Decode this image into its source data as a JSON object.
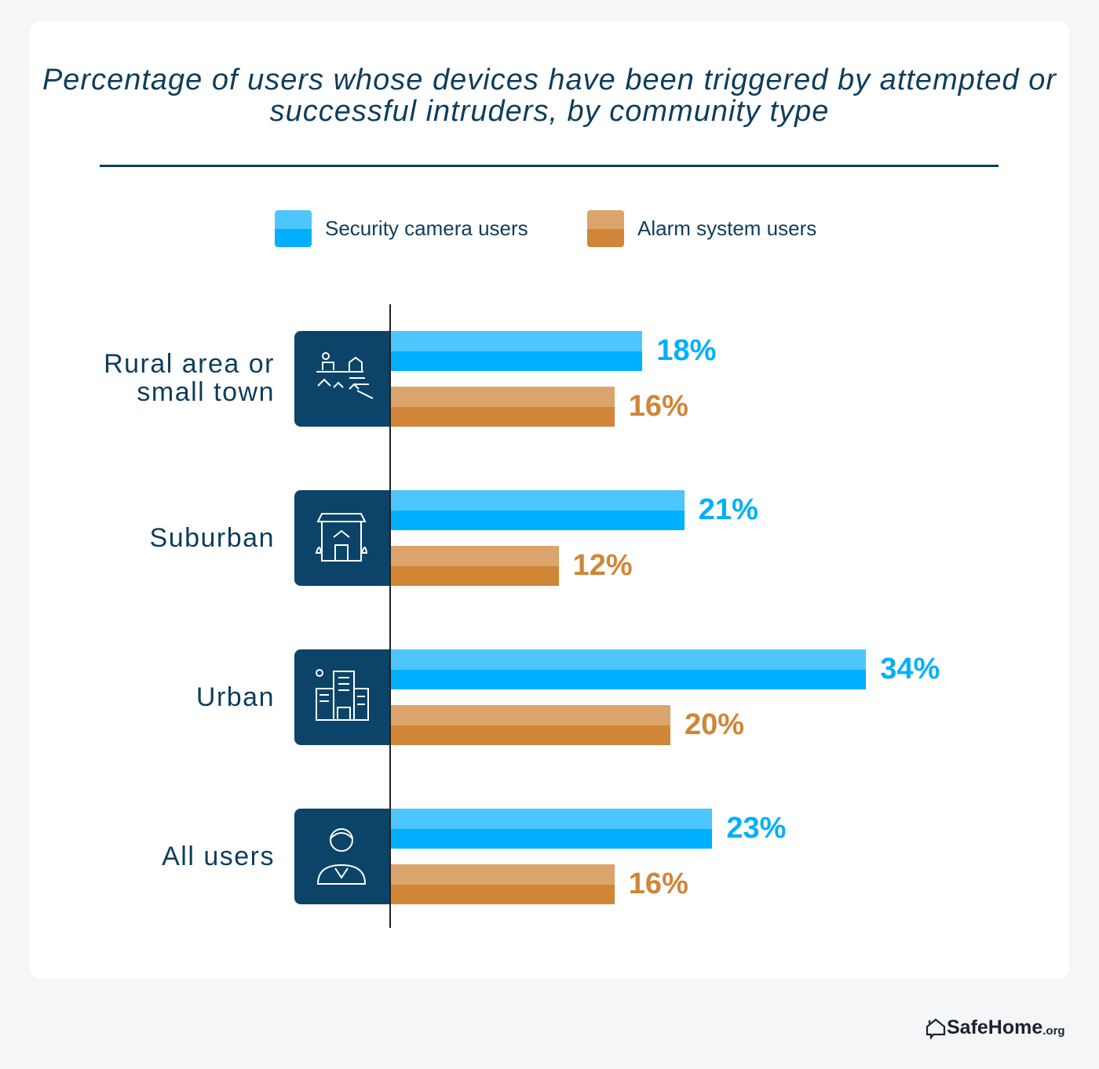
{
  "chart_data": {
    "type": "bar",
    "orientation": "horizontal",
    "title": "Percentage of users whose devices have been triggered by attempted or successful intruders, by community type",
    "categories": [
      "Rural area or small town",
      "Suburban",
      "Urban",
      "All users"
    ],
    "category_icons": [
      "rural-landscape-icon",
      "suburban-house-icon",
      "urban-buildings-icon",
      "user-person-icon"
    ],
    "series": [
      {
        "name": "Security camera users",
        "values": [
          18,
          21,
          34,
          23
        ],
        "color": "#00b0ff",
        "color_light": "#4dc6fd"
      },
      {
        "name": "Alarm system users",
        "values": [
          16,
          12,
          20,
          16
        ],
        "color": "#d08636",
        "color_light": "#dba46a"
      }
    ],
    "value_labels": [
      [
        "18%",
        "21%",
        "34%",
        "23%"
      ],
      [
        "16%",
        "12%",
        "20%",
        "16%"
      ]
    ],
    "legend": "top",
    "grid": false
  },
  "brand": {
    "name": "SafeHome",
    "suffix": ".org"
  }
}
